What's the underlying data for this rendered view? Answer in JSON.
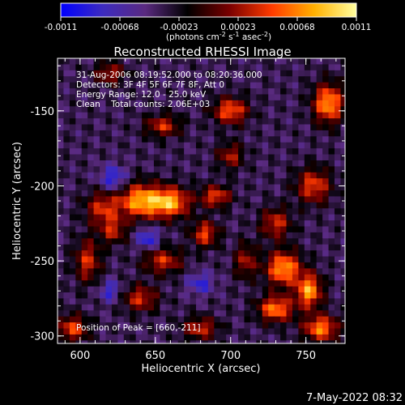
{
  "chart_data": {
    "type": "heatmap",
    "title": "Reconstructed RHESSI Image",
    "xlabel": "Heliocentric X (arcsec)",
    "ylabel": "Heliocentric Y (arcsec)",
    "xlim": [
      585,
      776
    ],
    "ylim": [
      -305,
      -115
    ],
    "xticks": [
      600,
      650,
      700,
      750
    ],
    "yticks": [
      -150,
      -200,
      -250,
      -300
    ],
    "colorbar": {
      "ticks": [
        "-0.0011",
        "-0.00068",
        "-0.00023",
        "0.00023",
        "0.00068",
        "0.0011"
      ],
      "range": [
        -0.0011,
        0.0011
      ],
      "unit_label": "(photons cm-2 s-1 asec-2)",
      "colors": [
        "#0000ff",
        "#3d2bbf",
        "#5a2a80",
        "#000000",
        "#7a0000",
        "#ff3b00",
        "#ffb000",
        "#ffffa0"
      ]
    },
    "annotations": {
      "time_range": "31-Aug-2006 08:19:52.000 to 08:20:36.000",
      "detectors": "Detectors: 3F 4F 5F 6F 7F 8F, Att 0",
      "energy": "Energy Range: 12.0 - 25.0 keV",
      "clean": "Clean    Total counts: 2.06E+03",
      "peak": "Position of Peak = [660,-211]"
    },
    "peak": {
      "x": 660,
      "y": -211
    },
    "sources": [
      {
        "x": 640,
        "y": -210,
        "amp": 0.0011,
        "sx": 10,
        "sy": 8
      },
      {
        "x": 660,
        "y": -211,
        "amp": 0.0011,
        "sx": 9,
        "sy": 7
      },
      {
        "x": 690,
        "y": -207,
        "amp": 0.0008,
        "sx": 7,
        "sy": 5
      },
      {
        "x": 683,
        "y": -232,
        "amp": 0.0008,
        "sx": 6,
        "sy": 6
      },
      {
        "x": 615,
        "y": -215,
        "amp": 0.0007,
        "sx": 8,
        "sy": 8
      },
      {
        "x": 605,
        "y": -250,
        "amp": 0.0007,
        "sx": 6,
        "sy": 10
      },
      {
        "x": 655,
        "y": -250,
        "amp": 0.0007,
        "sx": 9,
        "sy": 6
      },
      {
        "x": 622,
        "y": -230,
        "amp": 0.0006,
        "sx": 6,
        "sy": 6
      },
      {
        "x": 735,
        "y": -255,
        "amp": 0.0011,
        "sx": 8,
        "sy": 8
      },
      {
        "x": 752,
        "y": -270,
        "amp": 0.0011,
        "sx": 6,
        "sy": 8
      },
      {
        "x": 730,
        "y": -282,
        "amp": 0.001,
        "sx": 8,
        "sy": 6
      },
      {
        "x": 760,
        "y": -295,
        "amp": 0.001,
        "sx": 8,
        "sy": 6
      },
      {
        "x": 765,
        "y": -145,
        "amp": 0.0011,
        "sx": 7,
        "sy": 9
      },
      {
        "x": 755,
        "y": -200,
        "amp": 0.0008,
        "sx": 8,
        "sy": 8
      },
      {
        "x": 730,
        "y": -225,
        "amp": 0.0007,
        "sx": 7,
        "sy": 7
      },
      {
        "x": 700,
        "y": -150,
        "amp": 0.0009,
        "sx": 8,
        "sy": 6
      },
      {
        "x": 655,
        "y": -160,
        "amp": 0.0007,
        "sx": 8,
        "sy": 5
      },
      {
        "x": 620,
        "y": -125,
        "amp": 0.0006,
        "sx": 7,
        "sy": 5
      },
      {
        "x": 710,
        "y": -250,
        "amp": 0.0006,
        "sx": 5,
        "sy": 8
      },
      {
        "x": 595,
        "y": -295,
        "amp": 0.0008,
        "sx": 7,
        "sy": 6
      },
      {
        "x": 640,
        "y": -275,
        "amp": 0.0007,
        "sx": 8,
        "sy": 6
      },
      {
        "x": 680,
        "y": -295,
        "amp": 0.0007,
        "sx": 8,
        "sy": 5
      },
      {
        "x": 700,
        "y": -180,
        "amp": 0.0006,
        "sx": 6,
        "sy": 6
      },
      {
        "x": 622,
        "y": -195,
        "amp": -0.0006,
        "sx": 6,
        "sy": 6
      },
      {
        "x": 645,
        "y": -235,
        "amp": -0.0006,
        "sx": 5,
        "sy": 5
      },
      {
        "x": 680,
        "y": -265,
        "amp": -0.0005,
        "sx": 6,
        "sy": 5
      },
      {
        "x": 620,
        "y": -270,
        "amp": -0.0005,
        "sx": 5,
        "sy": 5
      }
    ]
  },
  "footer": {
    "timestamp": "7-May-2022 08:32"
  }
}
